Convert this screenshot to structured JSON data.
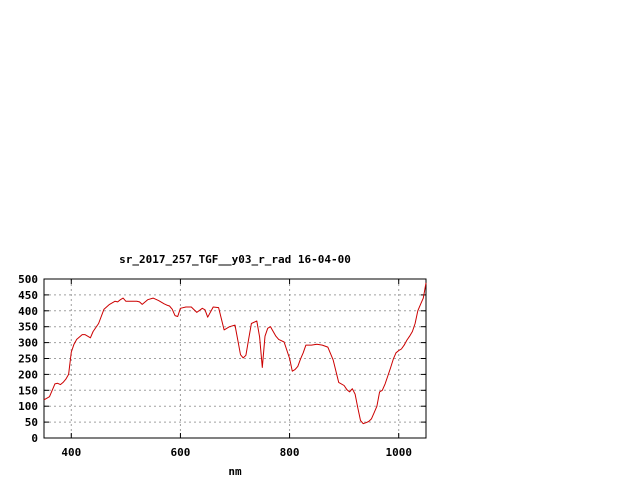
{
  "chart_data": {
    "type": "line",
    "title": "sr_2017_257_TGF__y03_r_rad 16-04-00",
    "xlabel": "nm",
    "ylabel": "",
    "xlim": [
      350,
      1050
    ],
    "ylim": [
      0,
      500
    ],
    "grid": true,
    "legend": "none",
    "colors": {
      "series": "#cc0000",
      "grid": "#a0a0a0",
      "axis": "#000000"
    },
    "x_ticks": [
      400,
      600,
      800,
      1000
    ],
    "y_ticks": [
      0,
      50,
      100,
      150,
      200,
      250,
      300,
      350,
      400,
      450,
      500
    ],
    "series": [
      {
        "x": [
          350,
          355,
          360,
          365,
          370,
          375,
          380,
          385,
          390,
          395,
          400,
          405,
          410,
          420,
          425,
          430,
          435,
          440,
          450,
          460,
          470,
          480,
          485,
          490,
          495,
          500,
          510,
          520,
          525,
          530,
          540,
          550,
          560,
          570,
          575,
          580,
          585,
          590,
          595,
          600,
          610,
          620,
          630,
          640,
          645,
          650,
          660,
          670,
          680,
          690,
          700,
          710,
          715,
          720,
          725,
          730,
          740,
          745,
          750,
          755,
          760,
          765,
          770,
          775,
          780,
          790,
          800,
          805,
          810,
          815,
          820,
          825,
          830,
          840,
          850,
          860,
          870,
          880,
          890,
          900,
          905,
          910,
          915,
          920,
          925,
          930,
          935,
          940,
          945,
          950,
          955,
          960,
          965,
          970,
          975,
          980,
          985,
          990,
          995,
          1000,
          1005,
          1010,
          1015,
          1020,
          1025,
          1030,
          1035,
          1040,
          1045,
          1050
        ],
        "y": [
          120,
          125,
          130,
          150,
          170,
          172,
          168,
          175,
          185,
          200,
          270,
          295,
          310,
          325,
          325,
          320,
          315,
          335,
          360,
          405,
          420,
          430,
          428,
          435,
          440,
          430,
          430,
          430,
          428,
          420,
          435,
          440,
          432,
          422,
          418,
          415,
          405,
          385,
          382,
          408,
          412,
          412,
          395,
          408,
          403,
          380,
          412,
          410,
          340,
          350,
          355,
          262,
          252,
          260,
          310,
          360,
          368,
          318,
          222,
          320,
          345,
          350,
          335,
          320,
          310,
          302,
          250,
          210,
          215,
          225,
          248,
          268,
          292,
          292,
          295,
          292,
          286,
          245,
          175,
          165,
          152,
          145,
          155,
          138,
          95,
          55,
          45,
          48,
          52,
          60,
          80,
          100,
          145,
          150,
          170,
          195,
          220,
          248,
          268,
          275,
          280,
          292,
          308,
          320,
          335,
          360,
          400,
          420,
          440,
          488
        ]
      }
    ]
  }
}
